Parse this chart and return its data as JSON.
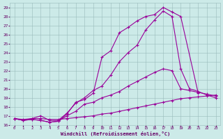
{
  "xlabel": "Windchill (Refroidissement éolien,°C)",
  "background_color": "#cceae8",
  "line_color": "#990099",
  "grid_color": "#99bbbb",
  "xlim": [
    -0.5,
    23.5
  ],
  "ylim": [
    16,
    29.5
  ],
  "xticks": [
    0,
    1,
    2,
    3,
    4,
    5,
    6,
    7,
    8,
    9,
    10,
    11,
    12,
    13,
    14,
    15,
    16,
    17,
    18,
    19,
    20,
    21,
    22,
    23
  ],
  "yticks": [
    16,
    17,
    18,
    19,
    20,
    21,
    22,
    23,
    24,
    25,
    26,
    27,
    28,
    29
  ],
  "series": [
    {
      "x": [
        0,
        1,
        2,
        3,
        4,
        5,
        6,
        7,
        8,
        9,
        10,
        11,
        12,
        13,
        14,
        15,
        16,
        17,
        18,
        19,
        20,
        21,
        22,
        23
      ],
      "y": [
        16.7,
        16.6,
        16.7,
        16.7,
        16.6,
        16.6,
        16.7,
        16.8,
        16.9,
        17.0,
        17.2,
        17.3,
        17.5,
        17.7,
        17.9,
        18.1,
        18.3,
        18.5,
        18.7,
        18.9,
        19.0,
        19.1,
        19.2,
        19.3
      ]
    },
    {
      "x": [
        0,
        1,
        2,
        3,
        4,
        5,
        6,
        7,
        8,
        9,
        10,
        11,
        12,
        13,
        14,
        15,
        16,
        17,
        18,
        19,
        20,
        21,
        22,
        23
      ],
      "y": [
        16.7,
        16.5,
        16.6,
        16.5,
        16.3,
        16.4,
        17.0,
        17.5,
        18.3,
        18.5,
        19.0,
        19.3,
        19.7,
        20.3,
        20.8,
        21.3,
        21.8,
        22.2,
        22.0,
        20.0,
        19.8,
        19.6,
        19.4,
        19.2
      ]
    },
    {
      "x": [
        0,
        1,
        2,
        3,
        4,
        5,
        6,
        7,
        8,
        9,
        10,
        11,
        12,
        13,
        14,
        15,
        16,
        17,
        18,
        19,
        21
      ],
      "y": [
        16.7,
        16.5,
        16.6,
        16.5,
        16.3,
        16.4,
        17.2,
        18.5,
        18.8,
        19.5,
        23.5,
        24.2,
        26.2,
        26.8,
        27.5,
        28.0,
        28.2,
        29.0,
        28.5,
        28.0,
        19.5
      ]
    },
    {
      "x": [
        0,
        1,
        2,
        3,
        4,
        5,
        6,
        7,
        8,
        9,
        10,
        11,
        12,
        13,
        14,
        15,
        16,
        17,
        18,
        19,
        20,
        21,
        22,
        23
      ],
      "y": [
        16.7,
        16.5,
        16.7,
        17.0,
        16.5,
        16.5,
        17.3,
        18.4,
        19.0,
        19.8,
        20.3,
        21.5,
        23.0,
        24.0,
        24.8,
        26.5,
        27.6,
        28.6,
        28.0,
        22.2,
        20.0,
        19.7,
        19.3,
        19.0
      ]
    }
  ]
}
